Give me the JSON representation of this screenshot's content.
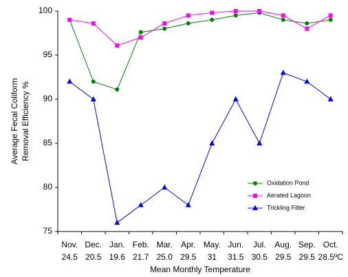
{
  "chart_data": {
    "type": "line",
    "ylabel": [
      "Average Fecal Coliform",
      "Removal Efficiency %"
    ],
    "xlabel": "Mean Monthly Temperature",
    "categories": [
      [
        "Nov.",
        "24.5"
      ],
      [
        "Dec.",
        "20.5"
      ],
      [
        "Jan.",
        "19.6"
      ],
      [
        "Feb.",
        "21.7"
      ],
      [
        "Mar.",
        "25.0"
      ],
      [
        "Apr.",
        "29.5"
      ],
      [
        "May.",
        "31"
      ],
      [
        "Jun.",
        "31.5"
      ],
      [
        "Jul.",
        "30.5"
      ],
      [
        "Aug.",
        "29.5"
      ],
      [
        "Sep.",
        "29.5"
      ],
      [
        "Oct.",
        "28.5ºC"
      ]
    ],
    "series": [
      {
        "name": "Oxidation Pond",
        "color": "#008000",
        "marker": "circle",
        "values": [
          99,
          92,
          91.1,
          97.6,
          98,
          98.6,
          99,
          99.5,
          99.8,
          99,
          98.6,
          99
        ]
      },
      {
        "name": "Aerated Lagoon",
        "color": "#ff00ff",
        "marker": "square",
        "values": [
          99,
          98.6,
          96.1,
          97,
          98.6,
          99.5,
          99.8,
          100,
          100,
          99.5,
          98,
          99.5
        ]
      },
      {
        "name": "Trickling Filter",
        "color": "#0000ff",
        "marker": "triangle",
        "values": [
          92,
          90,
          76,
          78,
          80,
          78,
          85,
          90,
          85,
          93,
          92,
          90
        ]
      }
    ],
    "ylim": [
      75,
      100
    ],
    "yticks": [
      75,
      80,
      85,
      90,
      95,
      100
    ],
    "grid": false,
    "legend": "lower right"
  }
}
